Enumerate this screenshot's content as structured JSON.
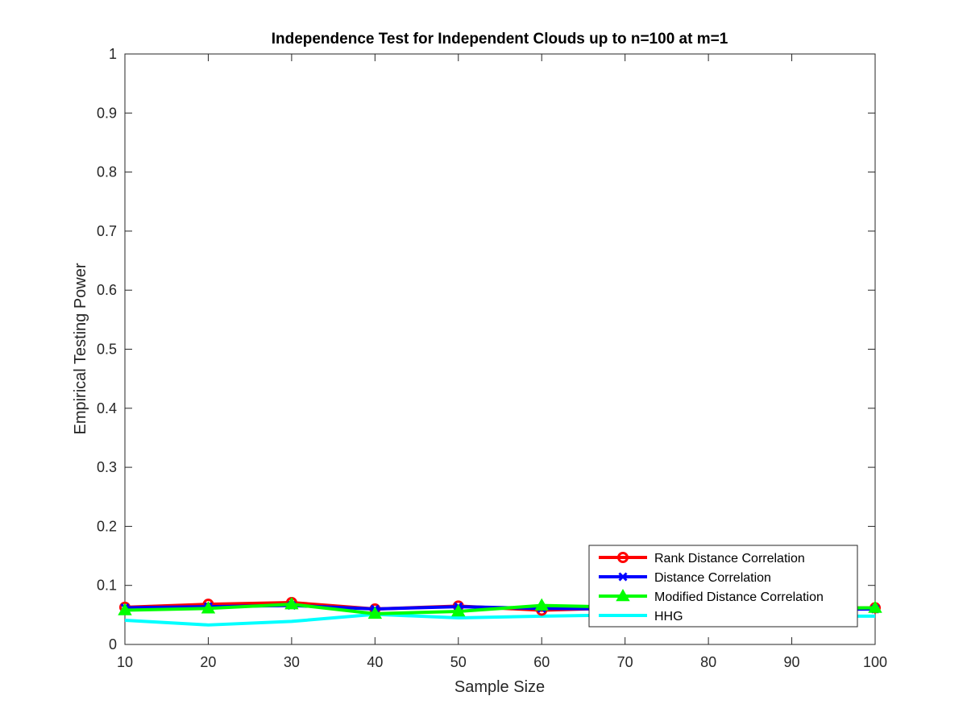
{
  "chart_data": {
    "type": "line",
    "title": "Independence Test for Independent Clouds up to n=100 at m=1",
    "xlabel": "Sample Size",
    "ylabel": "Empirical Testing Power",
    "x": [
      10,
      20,
      30,
      40,
      50,
      60,
      70,
      80,
      90,
      100
    ],
    "xlim": [
      10,
      100
    ],
    "ylim": [
      0,
      1
    ],
    "xticks": [
      "10",
      "20",
      "30",
      "40",
      "50",
      "60",
      "70",
      "80",
      "90",
      "100"
    ],
    "yticks": [
      "0",
      "0.1",
      "0.2",
      "0.3",
      "0.4",
      "0.5",
      "0.6",
      "0.7",
      "0.8",
      "0.9",
      "1"
    ],
    "grid": false,
    "legend_position": "bottom-right",
    "series": [
      {
        "name": "Rank Distance Correlation",
        "color": "#ff0000",
        "marker": "circle",
        "values": [
          0.063,
          0.068,
          0.071,
          0.06,
          0.065,
          0.058,
          0.062,
          0.06,
          0.061,
          0.062
        ]
      },
      {
        "name": "Distance Correlation",
        "color": "#0000ff",
        "marker": "x",
        "values": [
          0.062,
          0.064,
          0.066,
          0.06,
          0.064,
          0.061,
          0.06,
          0.059,
          0.059,
          0.06
        ]
      },
      {
        "name": "Modified Distance Correlation",
        "color": "#00ff00",
        "marker": "triangle",
        "values": [
          0.058,
          0.061,
          0.068,
          0.052,
          0.056,
          0.066,
          0.063,
          0.062,
          0.061,
          0.062
        ]
      },
      {
        "name": "HHG",
        "color": "#00ffff",
        "marker": "none",
        "values": [
          0.041,
          0.033,
          0.039,
          0.051,
          0.045,
          0.048,
          0.05,
          0.049,
          0.048,
          0.048
        ]
      }
    ]
  }
}
